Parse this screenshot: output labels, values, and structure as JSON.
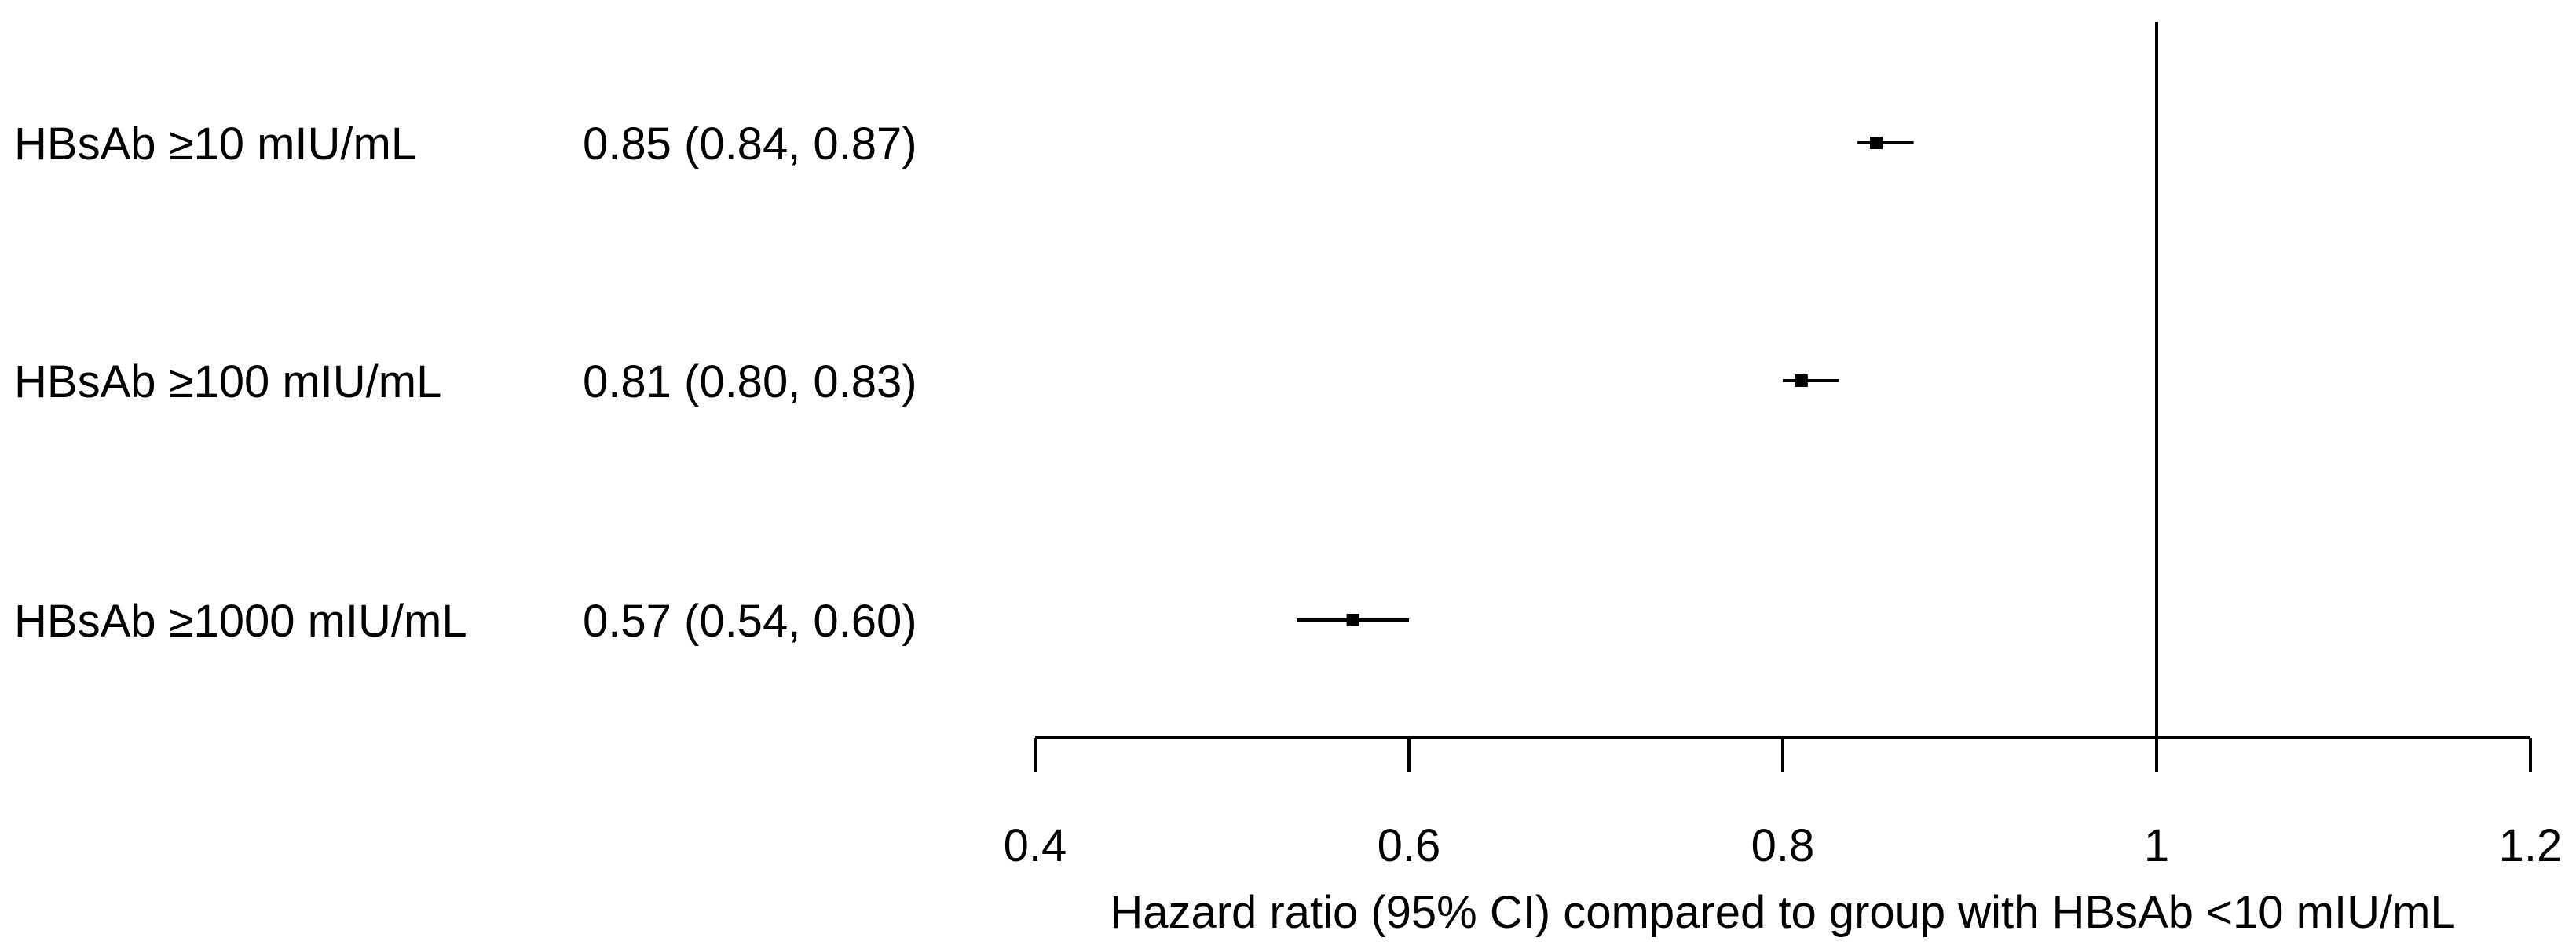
{
  "chart_data": {
    "type": "forest",
    "rows": [
      {
        "label": "HBsAb ≥10 mIU/mL",
        "estimate_text": "0.85 (0.84, 0.87)",
        "hr": 0.85,
        "lower": 0.84,
        "upper": 0.87
      },
      {
        "label": "HBsAb ≥100 mIU/mL",
        "estimate_text": "0.81 (0.80, 0.83)",
        "hr": 0.81,
        "lower": 0.8,
        "upper": 0.83
      },
      {
        "label": "HBsAb ≥1000 mIU/mL",
        "estimate_text": "0.57 (0.54, 0.60)",
        "hr": 0.57,
        "lower": 0.54,
        "upper": 0.6
      }
    ],
    "xlim": [
      0.4,
      1.2
    ],
    "x_ticks": [
      0.4,
      0.6,
      0.8,
      1.0,
      1.2
    ],
    "x_tick_labels": [
      "0.4",
      "0.6",
      "0.8",
      "1",
      "1.2"
    ],
    "reference_line": 1,
    "xlabel": "Hazard ratio (95% CI) compared to group with HBsAb <10 mIU/mL",
    "color": "#000000"
  }
}
